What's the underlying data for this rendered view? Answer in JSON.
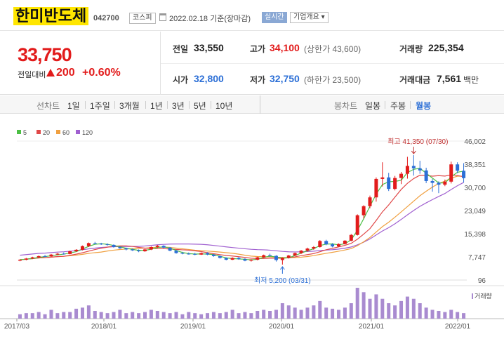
{
  "header": {
    "name": "한미반도체",
    "code": "042700",
    "market": "코스피",
    "date": "2022.02.18 기준(장마감)",
    "realtime": "실시간",
    "company_info": "기업개요 ▾"
  },
  "price": {
    "current": "33,750",
    "change_label": "전일대비",
    "change": "200",
    "pct": "+0.60%"
  },
  "stats": {
    "prev_label": "전일",
    "prev": "33,550",
    "high_label": "고가",
    "high": "34,100",
    "upper_note": "(상한가 43,600)",
    "volume_label": "거래량",
    "volume": "225,354",
    "open_label": "시가",
    "open": "32,800",
    "low_label": "저가",
    "low": "32,750",
    "lower_note": "(하한가 23,500)",
    "amount_label": "거래대금",
    "amount": "7,561",
    "amount_unit": "백만"
  },
  "tabs": {
    "line": "선차트",
    "periods": [
      "1일",
      "1주일",
      "3개월",
      "1년",
      "3년",
      "5년",
      "10년"
    ],
    "candle": "봉차트",
    "candle_types": [
      "일봉",
      "주봉",
      "월봉"
    ]
  },
  "colors": {
    "up": "#e21b1b",
    "down": "#2c6fd6",
    "ma5": "#4bbf44",
    "ma20": "#e04848",
    "ma60": "#f0a040",
    "ma120": "#a060d0",
    "vol": "#a98bd0"
  },
  "chart_data": {
    "type": "candlestick",
    "legend": [
      "5",
      "20",
      "60",
      "120"
    ],
    "y_ticks": [
      "46,002",
      "38,351",
      "30,700",
      "23,049",
      "15,398",
      "7,747",
      "96"
    ],
    "ylim": [
      96,
      46002
    ],
    "x_ticks": [
      "2017/03",
      "2018/01",
      "2019/01",
      "2020/01",
      "2021/01",
      "2022/01"
    ],
    "annotation_high": "최고 41,350 (07/30)",
    "annotation_low": "최저 5,200 (03/31)",
    "volume_label": "거래량",
    "candles": [
      [
        6500,
        7000,
        6300,
        6800
      ],
      [
        6800,
        7400,
        6600,
        7200
      ],
      [
        7200,
        7800,
        7000,
        7600
      ],
      [
        7600,
        8200,
        7300,
        8000
      ],
      [
        8000,
        8400,
        7700,
        7900
      ],
      [
        7900,
        8700,
        7800,
        8500
      ],
      [
        8500,
        9000,
        8300,
        8800
      ],
      [
        8800,
        9200,
        8500,
        8700
      ],
      [
        8700,
        9800,
        8600,
        9600
      ],
      [
        9600,
        10300,
        9400,
        10100
      ],
      [
        10100,
        11500,
        9900,
        11300
      ],
      [
        11300,
        12500,
        11000,
        12300
      ],
      [
        12300,
        12700,
        11900,
        12100
      ],
      [
        12100,
        12400,
        11700,
        11900
      ],
      [
        11900,
        12200,
        11500,
        11700
      ],
      [
        11700,
        11900,
        10800,
        11000
      ],
      [
        11000,
        11200,
        10400,
        10600
      ],
      [
        10600,
        10800,
        9900,
        10200
      ],
      [
        10200,
        10500,
        9700,
        9900
      ],
      [
        9900,
        10200,
        9300,
        9600
      ],
      [
        9600,
        10400,
        9400,
        10200
      ],
      [
        10200,
        11200,
        10000,
        11000
      ],
      [
        11000,
        11700,
        10700,
        11400
      ],
      [
        11400,
        11600,
        10600,
        10800
      ],
      [
        10800,
        11000,
        9600,
        9800
      ],
      [
        9800,
        10000,
        8800,
        9000
      ],
      [
        9000,
        9400,
        8600,
        8800
      ],
      [
        8800,
        9200,
        8500,
        8700
      ],
      [
        8700,
        9100,
        8300,
        8500
      ],
      [
        8500,
        9200,
        8400,
        9000
      ],
      [
        9000,
        9300,
        8300,
        8500
      ],
      [
        8500,
        8700,
        7800,
        8000
      ],
      [
        8000,
        8200,
        7200,
        7400
      ],
      [
        7400,
        7600,
        6600,
        6800
      ],
      [
        6800,
        7600,
        6700,
        7400
      ],
      [
        7400,
        7700,
        6800,
        7000
      ],
      [
        7000,
        7300,
        6300,
        6500
      ],
      [
        6500,
        7000,
        6200,
        6800
      ],
      [
        6800,
        7800,
        6600,
        7600
      ],
      [
        7600,
        8500,
        7400,
        8300
      ],
      [
        8300,
        8800,
        7800,
        8100
      ],
      [
        8100,
        8300,
        6200,
        6700
      ],
      [
        6700,
        7600,
        5200,
        7400
      ],
      [
        7400,
        8400,
        7200,
        8200
      ],
      [
        8200,
        9200,
        8000,
        9000
      ],
      [
        9000,
        10000,
        8700,
        9800
      ],
      [
        9800,
        10800,
        9500,
        10500
      ],
      [
        10500,
        11300,
        10100,
        11000
      ],
      [
        11000,
        13300,
        10800,
        13000
      ],
      [
        13000,
        13400,
        11600,
        11900
      ],
      [
        11900,
        12300,
        10900,
        11200
      ],
      [
        11200,
        12200,
        11000,
        12000
      ],
      [
        12000,
        13300,
        11800,
        13100
      ],
      [
        13100,
        15300,
        12900,
        15000
      ],
      [
        15000,
        21800,
        14800,
        21500
      ],
      [
        21500,
        24800,
        20400,
        24500
      ],
      [
        24500,
        28000,
        23800,
        27400
      ],
      [
        27400,
        34000,
        26000,
        33500
      ],
      [
        33500,
        39000,
        31000,
        34000
      ],
      [
        34000,
        35500,
        29500,
        30200
      ],
      [
        30200,
        34500,
        29700,
        33800
      ],
      [
        33800,
        35800,
        31800,
        35200
      ],
      [
        35200,
        40800,
        33600,
        37800
      ],
      [
        37800,
        41350,
        34600,
        37000
      ],
      [
        37000,
        39500,
        35200,
        36300
      ],
      [
        36300,
        37200,
        32100,
        32800
      ],
      [
        32800,
        33500,
        29300,
        32200
      ],
      [
        32200,
        32700,
        28800,
        31600
      ],
      [
        31600,
        33300,
        31100,
        32600
      ],
      [
        32600,
        39200,
        32000,
        38300
      ],
      [
        38300,
        39000,
        35400,
        36200
      ],
      [
        36200,
        38700,
        32300,
        33750
      ]
    ],
    "volume": [
      2,
      2.5,
      2.5,
      3,
      2,
      4,
      2.5,
      3,
      3,
      4.5,
      5,
      6,
      3.5,
      3,
      2.5,
      3,
      4,
      2.5,
      3,
      2.5,
      3,
      4,
      3.5,
      3,
      2.5,
      3,
      2,
      3,
      2.5,
      2,
      2.5,
      3,
      2.5,
      3,
      4,
      2.5,
      3,
      2.5,
      3.5,
      4,
      3.5,
      4,
      7,
      6,
      5,
      4,
      5,
      6,
      8,
      5,
      4.5,
      4,
      5,
      7,
      14,
      12,
      9,
      11,
      9,
      7,
      6,
      8,
      10,
      9,
      7,
      5,
      4,
      3.5,
      3,
      4,
      3,
      2.5
    ]
  }
}
